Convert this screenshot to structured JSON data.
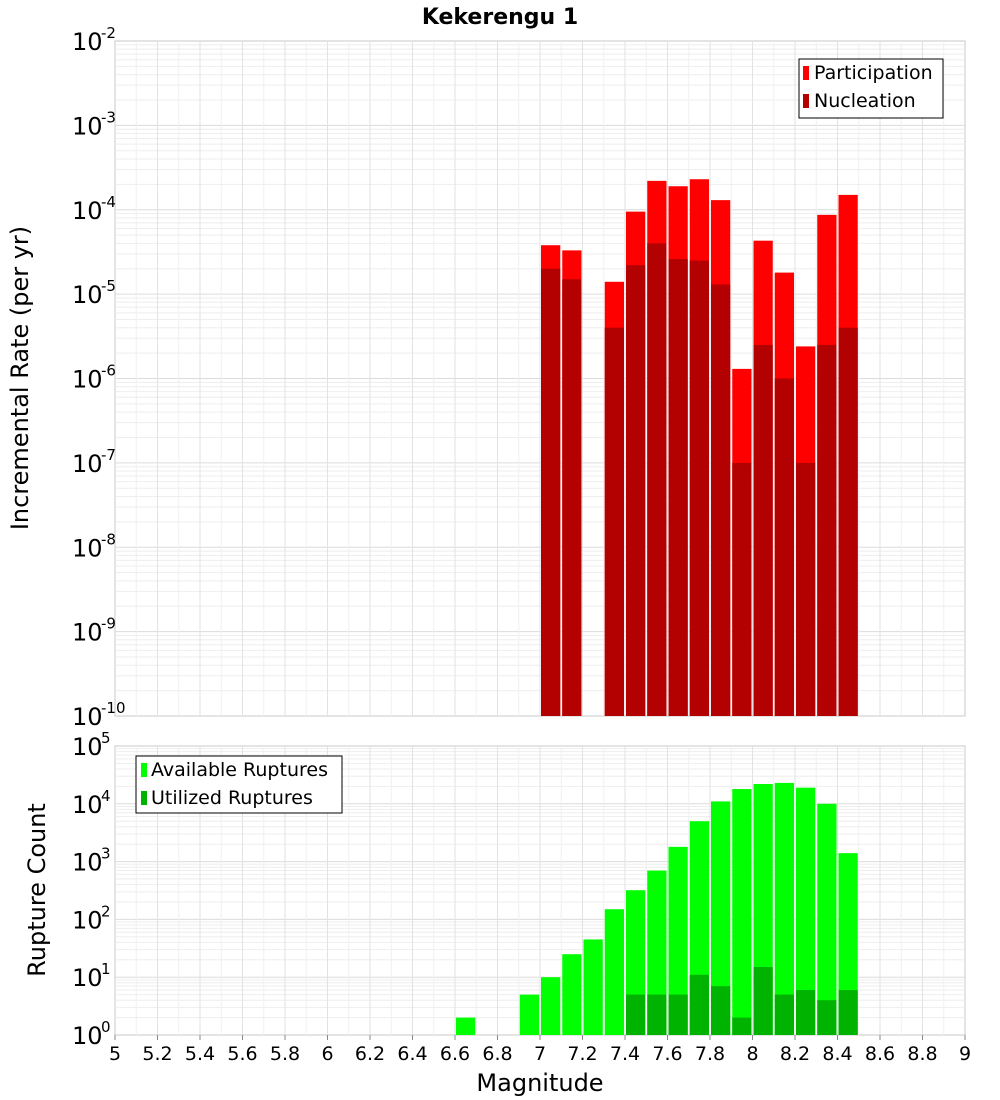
{
  "chart_data": [
    {
      "type": "bar",
      "title": "Kekerengu 1",
      "xlabel": "Magnitude",
      "ylabel": "Incremental Rate (per yr)",
      "yscale": "log",
      "ylim": [
        1e-10,
        0.01
      ],
      "xlim": [
        5,
        9
      ],
      "y_tick_exponents": [
        -10,
        -9,
        -8,
        -7,
        -6,
        -5,
        -4,
        -3,
        -2
      ],
      "grid": true,
      "legend_position": "top-right",
      "bar_width": 0.1,
      "colors": {
        "Participation": "#ff0000",
        "Nucleation": "#b30000"
      },
      "series": [
        {
          "name": "Participation",
          "x": [
            7.0,
            7.1,
            7.3,
            7.4,
            7.5,
            7.6,
            7.7,
            7.8,
            7.9,
            8.0,
            8.1,
            8.2,
            8.3,
            8.4
          ],
          "values": [
            3.8e-05,
            3.3e-05,
            1.4e-05,
            9.5e-05,
            0.00022,
            0.00019,
            0.00023,
            0.00013,
            1.3e-06,
            4.3e-05,
            1.8e-05,
            2.4e-06,
            8.7e-05,
            0.00015
          ]
        },
        {
          "name": "Nucleation",
          "x": [
            7.0,
            7.1,
            7.3,
            7.4,
            7.5,
            7.6,
            7.7,
            7.8,
            7.9,
            8.0,
            8.1,
            8.2,
            8.3,
            8.4
          ],
          "values": [
            2e-05,
            1.5e-05,
            4e-06,
            2.2e-05,
            4e-05,
            2.6e-05,
            2.5e-05,
            1.3e-05,
            1e-07,
            2.5e-06,
            1e-06,
            1e-07,
            2.5e-06,
            4e-06
          ]
        }
      ]
    },
    {
      "type": "bar",
      "xlabel": "Magnitude",
      "ylabel": "Rupture Count",
      "yscale": "log",
      "ylim": [
        1,
        100000
      ],
      "xlim": [
        5,
        9
      ],
      "x_ticks": [
        "5",
        "5.2",
        "5.4",
        "5.6",
        "5.8",
        "6",
        "6.2",
        "6.4",
        "6.6",
        "6.8",
        "7",
        "7.2",
        "7.4",
        "7.6",
        "7.8",
        "8",
        "8.2",
        "8.4",
        "8.6",
        "8.8",
        "9"
      ],
      "y_tick_exponents": [
        0,
        1,
        2,
        3,
        4,
        5
      ],
      "grid": true,
      "legend_position": "top-left",
      "bar_width": 0.1,
      "colors": {
        "Available Ruptures": "#00ff00",
        "Utilized Ruptures": "#00b300"
      },
      "series": [
        {
          "name": "Available Ruptures",
          "x": [
            6.6,
            6.8,
            6.9,
            7.0,
            7.1,
            7.2,
            7.3,
            7.4,
            7.5,
            7.6,
            7.7,
            7.8,
            7.9,
            8.0,
            8.1,
            8.2,
            8.3,
            8.4
          ],
          "values": [
            2,
            1,
            5,
            10,
            25,
            45,
            150,
            320,
            700,
            1800,
            5000,
            11000,
            18000,
            22000,
            23000,
            19000,
            10000,
            1400
          ]
        },
        {
          "name": "Utilized Ruptures",
          "x": [
            7.0,
            7.1,
            7.3,
            7.4,
            7.5,
            7.6,
            7.7,
            7.8,
            7.9,
            8.0,
            8.1,
            8.2,
            8.3,
            8.4
          ],
          "values": [
            1,
            1,
            1,
            5,
            5,
            5,
            11,
            7,
            2,
            15,
            5,
            6,
            4,
            6
          ]
        }
      ]
    }
  ]
}
